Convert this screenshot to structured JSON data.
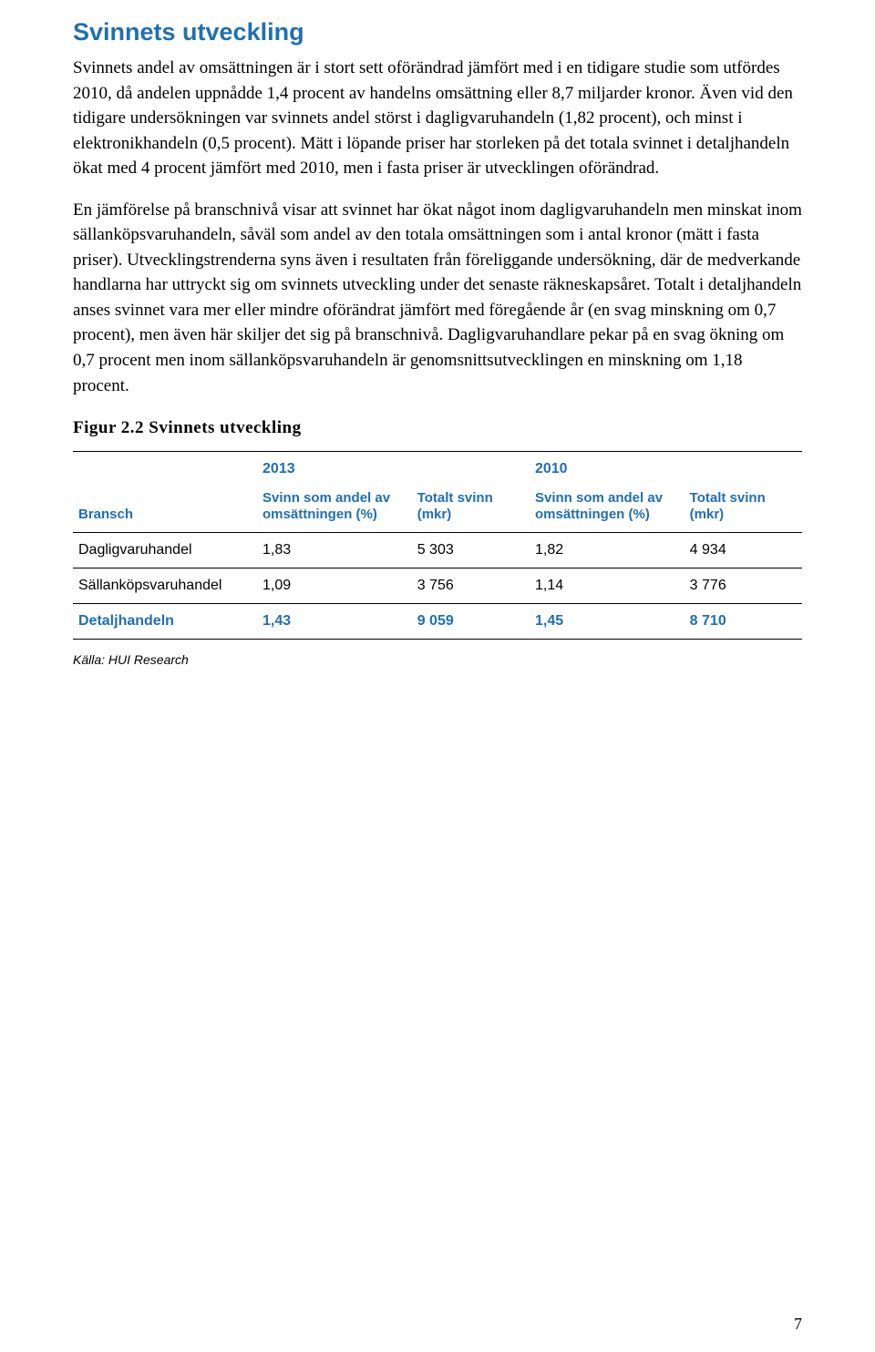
{
  "colors": {
    "accent": "#1f6fb2",
    "text": "#000000",
    "divider": "#000000",
    "background": "#ffffff"
  },
  "heading": "Svinnets utveckling",
  "paragraphs": [
    "Svinnets andel av omsättningen är i stort sett oförändrad jämfört med i en tidigare studie som utfördes 2010, då andelen uppnådde 1,4 procent av handelns omsättning eller 8,7 miljarder kronor. Även vid den tidigare undersökningen var svinnets andel störst i dagligvaruhandeln (1,82 procent), och minst i elektronikhandeln (0,5 procent). Mätt i löpande priser har storleken på det totala svinnet i detaljhandeln ökat med 4 procent jämfört med 2010, men i fasta priser är utvecklingen oförändrad.",
    "En jämförelse på branschnivå visar att svinnet har ökat något inom dagligvaruhandeln men minskat inom sällanköpsvaruhandeln, såväl som andel av den totala omsättningen som i antal kronor (mätt i fasta priser). Utvecklingstrenderna syns även i resultaten från föreliggande undersökning, där de medverkande handlarna har uttryckt sig om svinnets utveckling under det senaste räkneskapsåret. Totalt i detaljhandeln anses svinnet vara mer eller mindre oförändrat jämfört med föregående år (en svag minskning om 0,7 procent), men även här skiljer det sig på branschnivå. Dagligvaruhandlare pekar på en svag ökning om 0,7 procent men inom sällanköpsvaruhandeln är genomsnittsutvecklingen en minskning om 1,18 procent."
  ],
  "figure_caption": "Figur 2.2 Svinnets utveckling",
  "table": {
    "year_left": "2013",
    "year_right": "2010",
    "headers": {
      "bransch": "Bransch",
      "andel": "Svinn som andel av omsättningen (%)",
      "total": "Totalt svinn (mkr)"
    },
    "rows": [
      {
        "bransch": "Dagligvaruhandel",
        "a13": "1,83",
        "t13": "5 303",
        "a10": "1,82",
        "t10": "4 934",
        "total": false
      },
      {
        "bransch": "Sällanköpsvaruhandel",
        "a13": "1,09",
        "t13": "3 756",
        "a10": "1,14",
        "t10": "3 776",
        "total": false
      },
      {
        "bransch": "Detaljhandeln",
        "a13": "1,43",
        "t13": "9 059",
        "a10": "1,45",
        "t10": "8 710",
        "total": true
      }
    ]
  },
  "source_note": "Källa: HUI Research",
  "page_number": "7"
}
